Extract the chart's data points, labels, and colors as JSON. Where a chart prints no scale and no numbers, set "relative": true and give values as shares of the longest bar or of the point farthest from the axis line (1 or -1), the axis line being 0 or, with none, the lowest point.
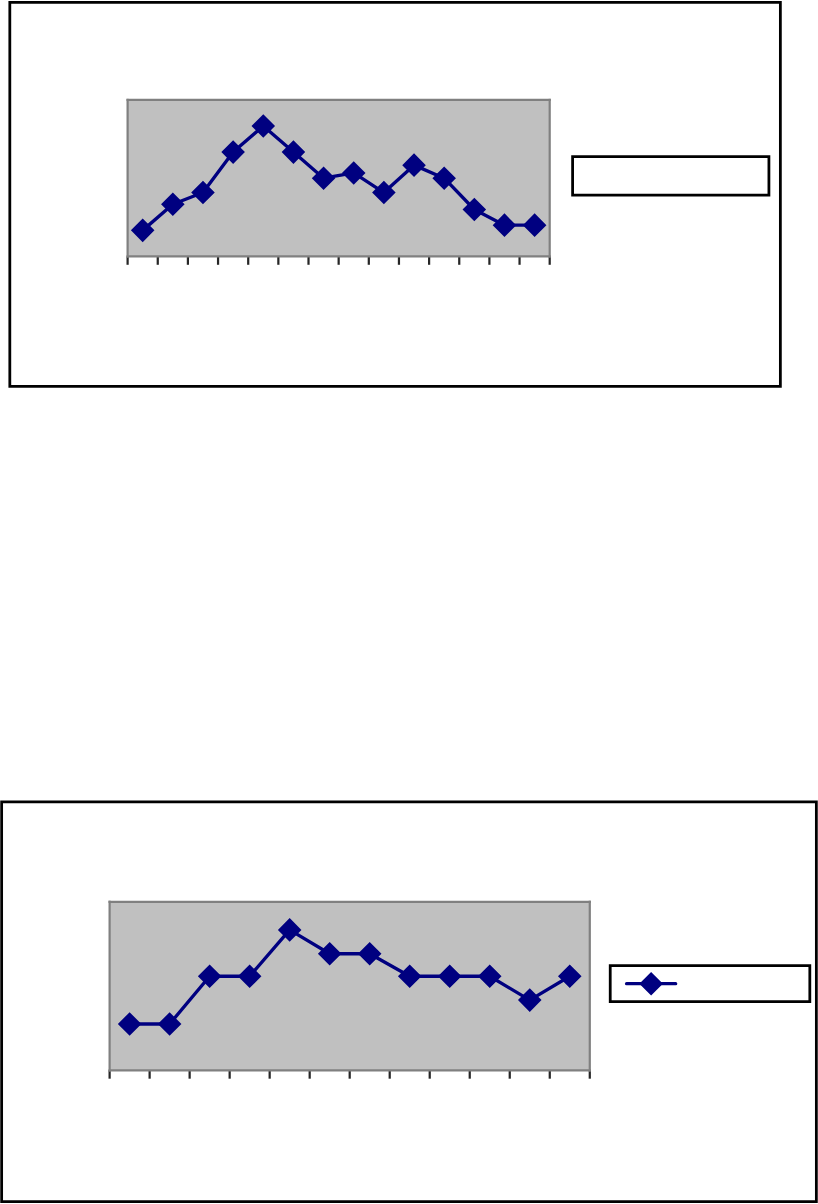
{
  "chart_data": [
    {
      "type": "line",
      "relative": true,
      "categories": [
        null,
        null,
        null,
        null,
        null,
        null,
        null,
        null,
        null,
        null,
        null,
        null,
        null,
        null
      ],
      "series": [
        {
          "color": "#000080",
          "values": [
            0.2,
            0.4,
            0.49,
            0.8,
            1,
            0.8,
            0.6,
            0.64,
            0.49,
            0.7,
            0.6,
            0.36,
            0.24,
            0.24
          ]
        }
      ],
      "marker": "diamond",
      "tick_labels": false,
      "grid": false
    },
    {
      "type": "line",
      "relative": true,
      "categories": [
        null,
        null,
        null,
        null,
        null,
        null,
        null,
        null,
        null,
        null,
        null,
        null
      ],
      "series": [
        {
          "color": "#000080",
          "values": [
            0.33,
            0.33,
            0.67,
            0.67,
            1,
            0.83,
            0.83,
            0.67,
            0.67,
            0.67,
            0.5,
            0.67
          ]
        }
      ],
      "marker": "diamond",
      "tick_labels": false,
      "grid": false
    }
  ]
}
